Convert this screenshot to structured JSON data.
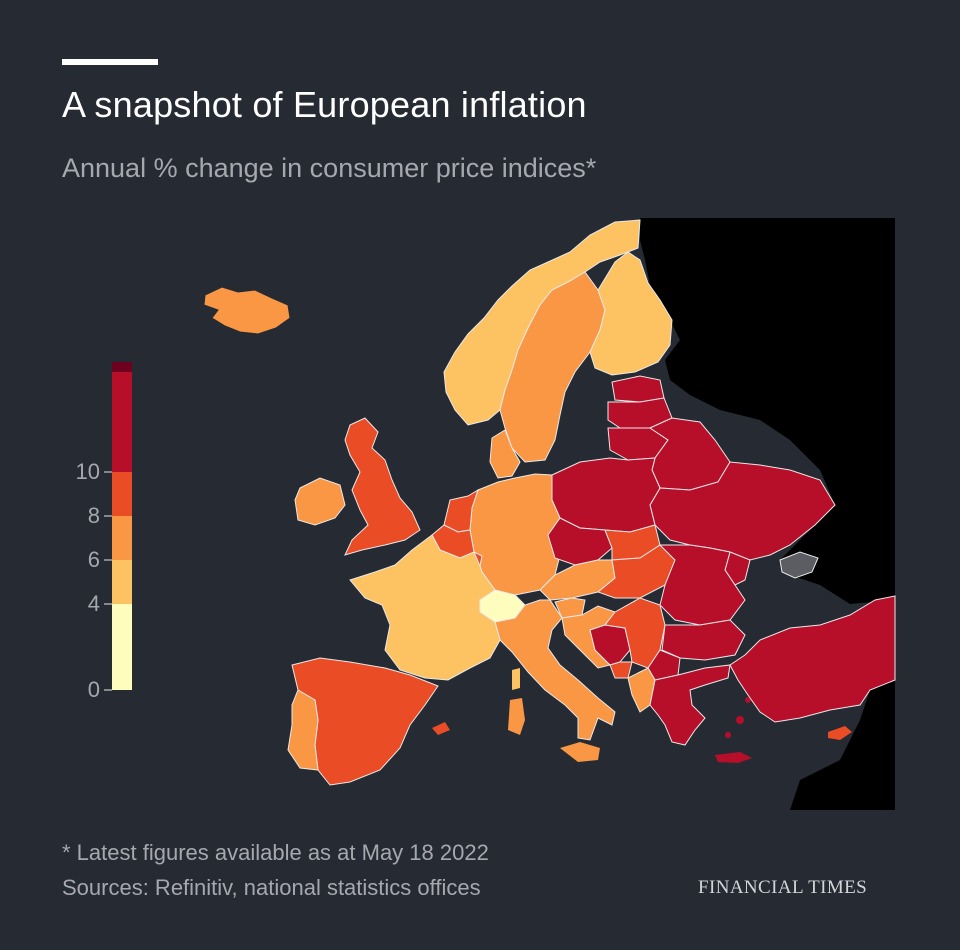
{
  "header": {
    "title": "A snapshot of European inflation",
    "subtitle": "Annual % change in consumer price indices*"
  },
  "legend": {
    "ticks": [
      "10",
      "8",
      "6",
      "4",
      "0"
    ],
    "bands": [
      {
        "from": 0,
        "to": 4,
        "color": "#fffdbd"
      },
      {
        "from": 4,
        "to": 6,
        "color": "#fdc262"
      },
      {
        "from": 6,
        "to": 8,
        "color": "#fa9745"
      },
      {
        "from": 8,
        "to": 10,
        "color": "#ea4d26"
      },
      {
        "from": 10,
        "to": 14,
        "color": "#b70f2a"
      }
    ],
    "top_color": "#6e0020"
  },
  "map_colors": {
    "background": "#262a33",
    "outside_data": "#000000",
    "no_data": "#5b5d62",
    "borders": "#e9e9e9"
  },
  "footer": {
    "footnote": "* Latest figures available as at May 18 2022",
    "sources": "Sources: Refinitiv, national statistics offices",
    "brand": "FINANCIAL TIMES"
  }
}
